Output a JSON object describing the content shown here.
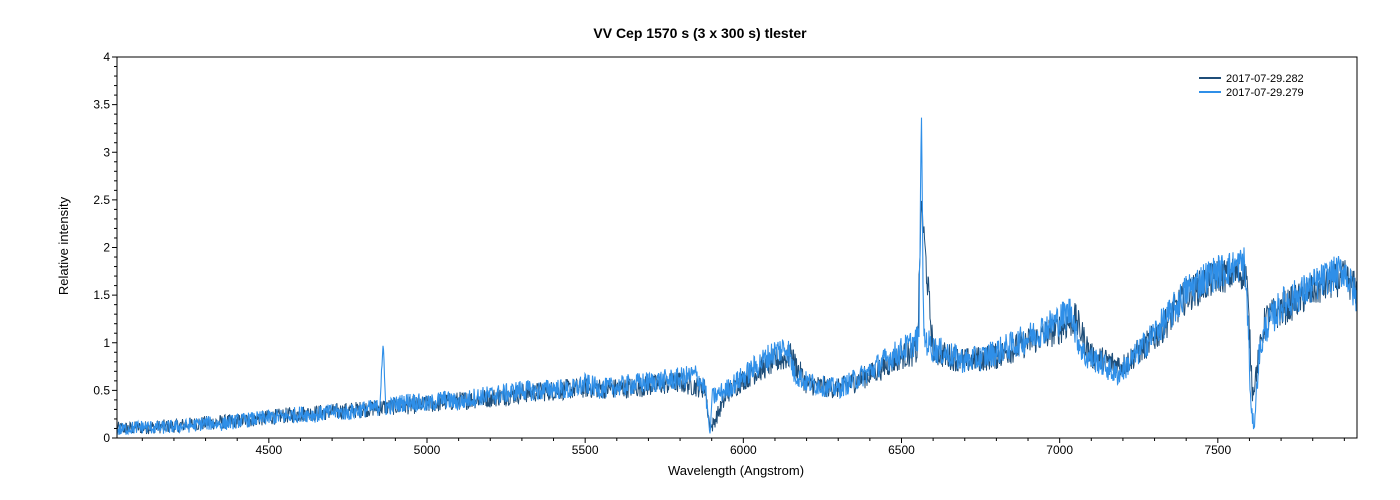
{
  "chart_data": {
    "type": "line",
    "title": "VV Cep   1570 s (3 x 300 s)   tlester",
    "xlabel": "Wavelength (Angstrom)",
    "ylabel": "Relative intensity",
    "xlim": [
      4020,
      7940
    ],
    "ylim": [
      0,
      4
    ],
    "x_ticks": [
      4500,
      5000,
      5500,
      6000,
      6500,
      7000,
      7500
    ],
    "y_ticks": [
      0,
      0.5,
      1,
      1.5,
      2,
      2.5,
      3,
      3.5,
      4
    ],
    "y_tick_labels": [
      "0",
      "0.5",
      "1",
      "1.5",
      "2",
      "2.5",
      "3",
      "3.5",
      "4"
    ],
    "grid": false,
    "legend_position": "top-right",
    "series": [
      {
        "name": "2017-07-29.282",
        "color": "#1f4e79",
        "x": [
          4020,
          4100,
          4200,
          4300,
          4400,
          4500,
          4600,
          4700,
          4800,
          4860,
          4900,
          5000,
          5100,
          5200,
          5300,
          5400,
          5500,
          5600,
          5700,
          5800,
          5880,
          5895,
          5950,
          6000,
          6100,
          6150,
          6200,
          6300,
          6400,
          6500,
          6550,
          6563,
          6600,
          6700,
          6800,
          6900,
          7000,
          7050,
          7100,
          7200,
          7300,
          7400,
          7500,
          7590,
          7610,
          7650,
          7700,
          7800,
          7900,
          7940
        ],
        "y": [
          0.12,
          0.13,
          0.15,
          0.18,
          0.2,
          0.24,
          0.28,
          0.3,
          0.33,
          0.35,
          0.36,
          0.38,
          0.42,
          0.45,
          0.5,
          0.53,
          0.56,
          0.55,
          0.58,
          0.62,
          0.55,
          0.1,
          0.5,
          0.65,
          0.85,
          0.9,
          0.6,
          0.55,
          0.7,
          0.9,
          0.95,
          2.5,
          0.95,
          0.85,
          0.9,
          1.05,
          1.2,
          1.3,
          0.9,
          0.8,
          1.1,
          1.55,
          1.75,
          1.8,
          0.5,
          1.3,
          1.4,
          1.6,
          1.75,
          1.6
        ]
      },
      {
        "name": "2017-07-29.279",
        "color": "#2f8fe8",
        "x": [
          4020,
          4050,
          4100,
          4150,
          4200,
          4250,
          4300,
          4350,
          4400,
          4450,
          4500,
          4550,
          4600,
          4650,
          4700,
          4750,
          4800,
          4850,
          4860,
          4870,
          4900,
          4950,
          5000,
          5050,
          5100,
          5150,
          5200,
          5250,
          5300,
          5350,
          5400,
          5450,
          5500,
          5550,
          5600,
          5650,
          5700,
          5750,
          5800,
          5850,
          5880,
          5890,
          5895,
          5900,
          5950,
          6000,
          6050,
          6100,
          6140,
          6160,
          6200,
          6250,
          6300,
          6350,
          6400,
          6450,
          6500,
          6540,
          6555,
          6563,
          6570,
          6600,
          6650,
          6700,
          6750,
          6800,
          6850,
          6900,
          6950,
          7000,
          7040,
          7050,
          7080,
          7120,
          7180,
          7200,
          7250,
          7300,
          7350,
          7400,
          7450,
          7500,
          7550,
          7585,
          7595,
          7605,
          7615,
          7630,
          7650,
          7700,
          7750,
          7800,
          7850,
          7900,
          7940
        ],
        "y": [
          0.1,
          0.12,
          0.14,
          0.13,
          0.14,
          0.15,
          0.18,
          0.17,
          0.2,
          0.22,
          0.24,
          0.25,
          0.28,
          0.27,
          0.3,
          0.29,
          0.33,
          0.35,
          1.02,
          0.35,
          0.38,
          0.42,
          0.38,
          0.44,
          0.4,
          0.46,
          0.48,
          0.5,
          0.54,
          0.52,
          0.56,
          0.53,
          0.6,
          0.55,
          0.57,
          0.6,
          0.62,
          0.64,
          0.66,
          0.7,
          0.55,
          0.2,
          0.0,
          0.45,
          0.55,
          0.68,
          0.82,
          0.95,
          1.0,
          0.72,
          0.62,
          0.58,
          0.55,
          0.64,
          0.74,
          0.86,
          0.96,
          1.05,
          1.1,
          3.45,
          1.1,
          0.98,
          0.92,
          0.85,
          0.88,
          0.95,
          1.02,
          1.1,
          1.2,
          1.3,
          1.4,
          1.15,
          0.9,
          0.85,
          0.7,
          0.75,
          0.95,
          1.15,
          1.35,
          1.6,
          1.72,
          1.8,
          1.85,
          1.9,
          1.3,
          0.3,
          0.15,
          0.9,
          1.2,
          1.45,
          1.55,
          1.65,
          1.75,
          1.82,
          1.5
        ]
      }
    ]
  }
}
